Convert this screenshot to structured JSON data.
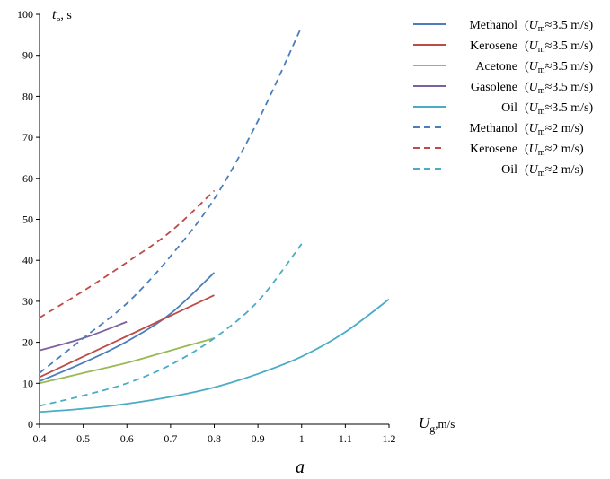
{
  "chart_data": {
    "type": "line",
    "panel_label": "a",
    "ylabel": {
      "symbol": "t",
      "sub": "e",
      "unit": ", s"
    },
    "xlabel": {
      "symbol": "U",
      "sub": "g",
      "unit": ",m/s"
    },
    "xlim": [
      0.4,
      1.2
    ],
    "ylim": [
      0,
      100
    ],
    "x_ticks": [
      "0.4",
      "0.5",
      "0.6",
      "0.7",
      "0.8",
      "0.9",
      "1",
      "1.1",
      "1.2"
    ],
    "y_ticks": [
      "0",
      "10",
      "20",
      "30",
      "40",
      "50",
      "60",
      "70",
      "80",
      "90",
      "100"
    ],
    "grid": false,
    "legend_position": "top-right",
    "series": [
      {
        "name": "Methanol",
        "cond_pre": "(",
        "cond_sym": "U",
        "cond_sub": "m",
        "cond_val": "≈3.5 m/s)",
        "color": "#4a7ebb",
        "dash": "solid",
        "x": [
          0.4,
          0.5,
          0.6,
          0.7,
          0.8
        ],
        "y": [
          10.5,
          15.0,
          20.2,
          27.0,
          37.0
        ]
      },
      {
        "name": "Kerosene",
        "cond_pre": "(",
        "cond_sym": "U",
        "cond_sub": "m",
        "cond_val": "≈3.5 m/s)",
        "color": "#be4b48",
        "dash": "solid",
        "x": [
          0.4,
          0.5,
          0.6,
          0.7,
          0.8
        ],
        "y": [
          11.5,
          16.5,
          21.5,
          26.5,
          31.5
        ]
      },
      {
        "name": "Acetone",
        "cond_pre": "(",
        "cond_sym": "U",
        "cond_sub": "m",
        "cond_val": "≈3.5 m/s)",
        "color": "#98b954",
        "dash": "solid",
        "x": [
          0.4,
          0.5,
          0.6,
          0.7,
          0.8
        ],
        "y": [
          10.0,
          12.5,
          15.0,
          18.0,
          21.0
        ]
      },
      {
        "name": "Gasolene",
        "cond_pre": "(",
        "cond_sym": "U",
        "cond_sub": "m",
        "cond_val": "≈3.5 m/s)",
        "color": "#7d60a0",
        "dash": "solid",
        "x": [
          0.4,
          0.5,
          0.6
        ],
        "y": [
          18.0,
          21.0,
          25.0
        ]
      },
      {
        "name": "Oil",
        "cond_pre": "(",
        "cond_sym": "U",
        "cond_sub": "m",
        "cond_val": "≈3.5 m/s)",
        "color": "#4bacc6",
        "dash": "solid",
        "x": [
          0.4,
          0.5,
          0.6,
          0.7,
          0.8,
          0.9,
          1.0,
          1.1,
          1.2
        ],
        "y": [
          3.0,
          3.8,
          5.0,
          6.7,
          9.0,
          12.3,
          16.5,
          22.5,
          30.5
        ]
      },
      {
        "name": "Methanol",
        "cond_pre": "(",
        "cond_sym": "U",
        "cond_sub": "m",
        "cond_val": "≈2 m/s)",
        "color": "#4a7ebb",
        "dash": "dashed",
        "x": [
          0.4,
          0.5,
          0.6,
          0.7,
          0.8,
          0.9,
          1.0
        ],
        "y": [
          12.5,
          21.0,
          29.5,
          41.0,
          55.0,
          74.0,
          97.0
        ]
      },
      {
        "name": "Kerosene",
        "cond_pre": "(",
        "cond_sym": "U",
        "cond_sub": "m",
        "cond_val": "≈2 m/s)",
        "color": "#be4b48",
        "dash": "dashed",
        "x": [
          0.4,
          0.5,
          0.6,
          0.7,
          0.8
        ],
        "y": [
          26.0,
          32.5,
          39.5,
          47.0,
          57.0
        ]
      },
      {
        "name": "Oil",
        "cond_pre": "(",
        "cond_sym": "U",
        "cond_sub": "m",
        "cond_val": "≈2 m/s)",
        "color": "#4bacc6",
        "dash": "dashed",
        "x": [
          0.4,
          0.5,
          0.6,
          0.7,
          0.8,
          0.9,
          1.0
        ],
        "y": [
          4.5,
          7.0,
          10.0,
          14.5,
          21.0,
          30.0,
          44.0
        ]
      }
    ]
  }
}
